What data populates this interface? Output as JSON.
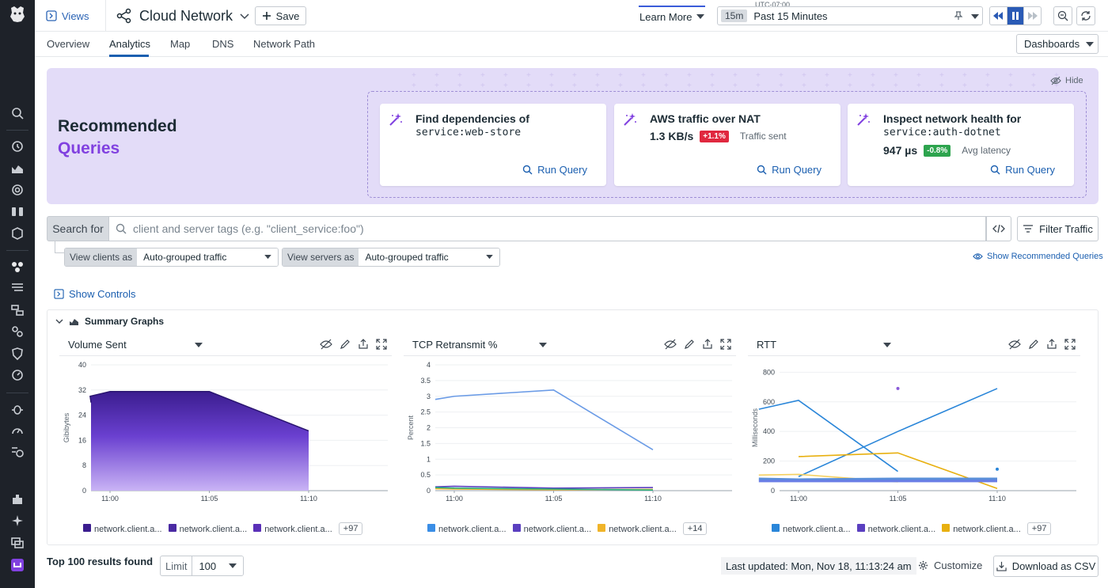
{
  "topbar": {
    "views_label": "Views",
    "title": "Cloud Network",
    "save_label": "Save",
    "learn_more": "Learn More",
    "timezone": "UTC-07:00",
    "time_short": "15m",
    "time_range": "Past 15 Minutes"
  },
  "tabs": [
    {
      "label": "Overview"
    },
    {
      "label": "Analytics"
    },
    {
      "label": "Map"
    },
    {
      "label": "DNS"
    },
    {
      "label": "Network Path"
    }
  ],
  "dashboards_label": "Dashboards",
  "recommended": {
    "title_line1": "Recommended",
    "title_line2": "Queries",
    "hide_label": "Hide",
    "cards": [
      {
        "title": "Find dependencies of",
        "mono": "service:web-store",
        "run": "Run Query"
      },
      {
        "title": "AWS traffic over NAT",
        "value": "1.3 KB/s",
        "badge": "+1.1%",
        "badge_color": "#e0283f",
        "label": "Traffic sent",
        "run": "Run Query"
      },
      {
        "title": "Inspect network health for",
        "mono": "service:auth-dotnet",
        "value": "947 µs",
        "badge": "-0.8%",
        "badge_color": "#2da44e",
        "label": "Avg latency",
        "run": "Run Query"
      }
    ]
  },
  "search": {
    "label": "Search for",
    "placeholder": "client and server tags (e.g. \"client_service:foo\")",
    "filter_label": "Filter Traffic"
  },
  "view_clients": {
    "label": "View clients as",
    "value": "Auto-grouped traffic"
  },
  "view_servers": {
    "label": "View servers as",
    "value": "Auto-grouped traffic"
  },
  "show_recommended": "Show Recommended Queries",
  "show_controls": "Show Controls",
  "summary_title": "Summary Graphs",
  "graphs": [
    {
      "name": "Volume Sent",
      "legend": [
        "network.client.a...",
        "network.client.a...",
        "network.client.a..."
      ],
      "legend_colors": [
        "#3b1d8f",
        "#4a2aa3",
        "#5a30b8"
      ],
      "more": "+97"
    },
    {
      "name": "TCP Retransmit %",
      "legend": [
        "network.client.a...",
        "network.client.a...",
        "network.client.a..."
      ],
      "legend_colors": [
        "#3a8ee6",
        "#5a3fc0",
        "#f0b429"
      ],
      "more": "+14"
    },
    {
      "name": "RTT",
      "legend": [
        "network.client.a...",
        "network.client.a...",
        "network.client.a..."
      ],
      "legend_colors": [
        "#2a86d9",
        "#5a3fc0",
        "#e8b010"
      ],
      "more": "+97"
    }
  ],
  "chart_data": [
    {
      "type": "area",
      "ylabel": "Gibibytes",
      "ylim": [
        0,
        40
      ],
      "yticks": [
        "0",
        "8",
        "16",
        "24",
        "32",
        "40"
      ],
      "xticks": [
        "11:00",
        "11:05",
        "11:10"
      ],
      "x": [
        "10:58",
        "10:59",
        "11:00",
        "11:01",
        "11:02",
        "11:03",
        "11:04",
        "11:05",
        "11:06",
        "11:07",
        "11:08",
        "11:09",
        "11:10"
      ],
      "values": [
        28,
        30,
        31.5,
        31.5,
        31.5,
        31.5,
        31.5,
        31.5,
        29,
        26.5,
        24,
        21.5,
        19
      ]
    },
    {
      "type": "line",
      "ylabel": "Percent",
      "ylim": [
        0,
        4
      ],
      "yticks": [
        "0",
        "0.5",
        "1",
        "1.5",
        "2",
        "2.5",
        "3",
        "3.5",
        "4"
      ],
      "xticks": [
        "11:00",
        "11:05",
        "11:10"
      ],
      "series": [
        {
          "color": "#6a9be6",
          "x": [
            "10:57",
            "11:00",
            "11:05",
            "11:10"
          ],
          "values": [
            2.9,
            3.0,
            3.2,
            1.3
          ]
        },
        {
          "color": "#5a3fc0",
          "x": [
            "10:57",
            "11:00",
            "11:05",
            "11:10"
          ],
          "values": [
            0.12,
            0.14,
            0.08,
            0.1
          ]
        },
        {
          "color": "#f0b429",
          "x": [
            "10:57",
            "11:00",
            "11:05",
            "11:10"
          ],
          "values": [
            0.06,
            0.05,
            0.03,
            0.04
          ]
        },
        {
          "color": "#2ab27b",
          "x": [
            "10:57",
            "11:00",
            "11:05",
            "11:10"
          ],
          "values": [
            0.1,
            0.08,
            0.05,
            0.02
          ]
        }
      ]
    },
    {
      "type": "line",
      "ylabel": "Milliseconds",
      "ylim": [
        0,
        850
      ],
      "yticks": [
        "0",
        "200",
        "400",
        "600",
        "800"
      ],
      "xticks": [
        "11:00",
        "11:05",
        "11:10"
      ],
      "series": [
        {
          "color": "#2a86d9",
          "x": [
            "10:58",
            "11:00",
            "11:05"
          ],
          "values": [
            550,
            610,
            130
          ]
        },
        {
          "color": "#2a86d9",
          "x": [
            "11:00",
            "11:05",
            "11:10"
          ],
          "values": [
            95,
            400,
            690
          ]
        },
        {
          "color": "#e8b010",
          "x": [
            "11:00",
            "11:05",
            "11:10"
          ],
          "values": [
            230,
            255,
            15
          ]
        },
        {
          "color": "#f5d060",
          "x": [
            "10:58",
            "11:00",
            "11:05"
          ],
          "values": [
            105,
            110,
            60
          ]
        },
        {
          "color": "#5a8fd9",
          "x": [
            "10:58",
            "11:00",
            "11:05",
            "11:10"
          ],
          "values": [
            80,
            75,
            80,
            80
          ]
        },
        {
          "color": "#6a7ee6",
          "x": [
            "10:58",
            "11:00",
            "11:05",
            "11:10"
          ],
          "values": [
            65,
            65,
            65,
            65
          ]
        }
      ],
      "points": [
        {
          "x": "11:05",
          "y": 690,
          "color": "#8a5ad9"
        },
        {
          "x": "11:10",
          "y": 145,
          "color": "#2a86d9"
        }
      ]
    }
  ],
  "footer": {
    "results": "Top 100 results found",
    "limit_label": "Limit",
    "limit_value": "100",
    "updated": "Last updated: Mon, Nov 18, 11:13:24 am",
    "customize": "Customize",
    "download": "Download as CSV"
  }
}
